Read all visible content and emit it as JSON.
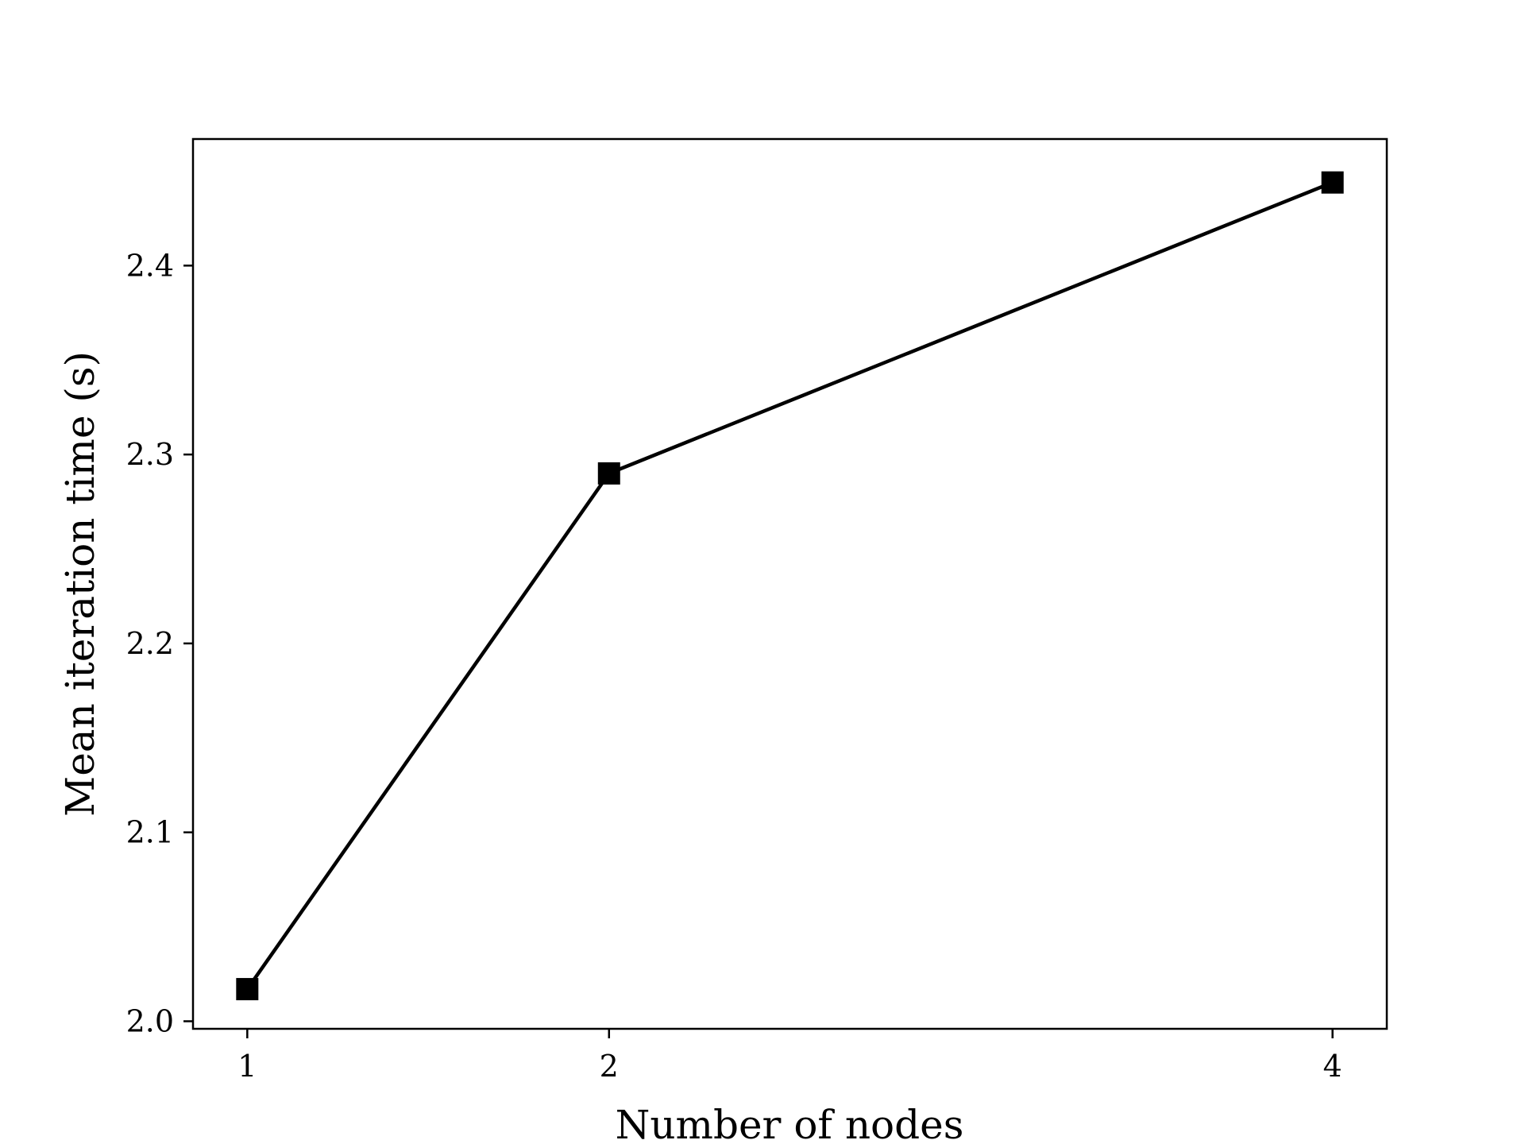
{
  "chart_data": {
    "type": "line",
    "title": "",
    "xlabel": "Number of nodes",
    "ylabel": "Mean iteration time (s)",
    "x": [
      1,
      2,
      4
    ],
    "x_ticks": [
      "1",
      "2",
      "4"
    ],
    "y_ticks": [
      "2.0",
      "2.1",
      "2.2",
      "2.3",
      "2.4"
    ],
    "y_tick_values": [
      2.0,
      2.1,
      2.2,
      2.3,
      2.4
    ],
    "xlim": [
      0.85,
      4.15
    ],
    "ylim": [
      1.996,
      2.467
    ],
    "grid": false,
    "series": [
      {
        "values": [
          2.017,
          2.29,
          2.444
        ],
        "color": "#000000",
        "marker": "square"
      }
    ]
  }
}
